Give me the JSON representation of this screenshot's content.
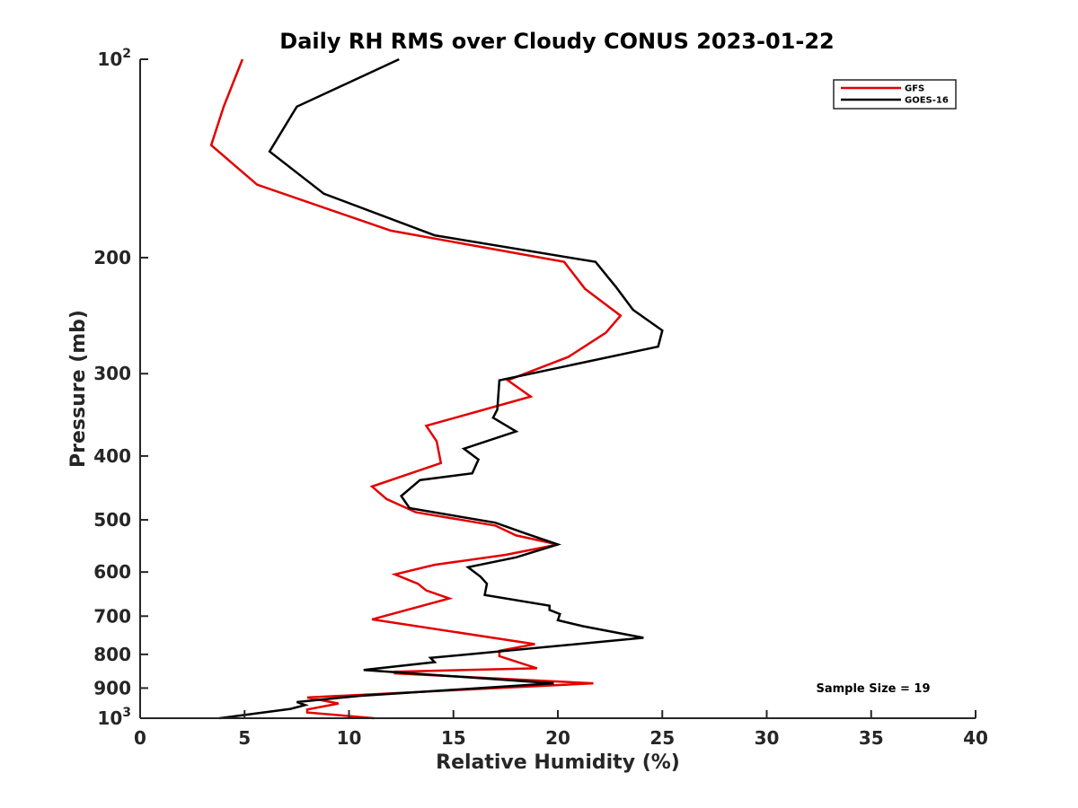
{
  "chart_data": {
    "type": "line",
    "title": "Daily RH RMS over Cloudy CONUS 2023-01-22",
    "xlabel": "Relative Humidity (%)",
    "ylabel": "Pressure (mb)",
    "xlim": [
      0,
      40
    ],
    "ylim": [
      100,
      1000
    ],
    "y_scale": "log",
    "y_reversed": true,
    "xticks": [
      0,
      5,
      10,
      15,
      20,
      25,
      30,
      35,
      40
    ],
    "xtick_labels": [
      "0",
      "5",
      "10",
      "15",
      "20",
      "25",
      "30",
      "35",
      "40"
    ],
    "yticks": [
      {
        "value": 100,
        "base": "10",
        "exp": "2"
      },
      {
        "value": 200,
        "label": "200"
      },
      {
        "value": 300,
        "label": "300"
      },
      {
        "value": 400,
        "label": "400"
      },
      {
        "value": 500,
        "label": "500"
      },
      {
        "value": 600,
        "label": "600"
      },
      {
        "value": 700,
        "label": "700"
      },
      {
        "value": 800,
        "label": "800"
      },
      {
        "value": 900,
        "label": "900"
      },
      {
        "value": 1000,
        "base": "10",
        "exp": "3"
      }
    ],
    "grid": false,
    "legend": "top-right",
    "annotation": "Sample Size = 19",
    "series": [
      {
        "name": "GFS",
        "color": "#e30000",
        "points": [
          [
            4.9,
            100
          ],
          [
            4.0,
            118
          ],
          [
            3.4,
            135
          ],
          [
            5.6,
            155
          ],
          [
            12.0,
            182
          ],
          [
            20.3,
            203
          ],
          [
            21.3,
            223
          ],
          [
            23.0,
            245
          ],
          [
            22.3,
            260
          ],
          [
            20.5,
            283
          ],
          [
            17.6,
            307
          ],
          [
            18.7,
            325
          ],
          [
            13.7,
            360
          ],
          [
            14.2,
            380
          ],
          [
            14.4,
            410
          ],
          [
            11.1,
            445
          ],
          [
            11.8,
            465
          ],
          [
            13.2,
            487
          ],
          [
            17.0,
            510
          ],
          [
            18.0,
            528
          ],
          [
            20.0,
            545
          ],
          [
            17.5,
            565
          ],
          [
            14.1,
            585
          ],
          [
            12.2,
            605
          ],
          [
            13.3,
            625
          ],
          [
            13.7,
            640
          ],
          [
            14.8,
            658
          ],
          [
            11.1,
            708
          ],
          [
            18.9,
            772
          ],
          [
            17.2,
            790
          ],
          [
            17.2,
            805
          ],
          [
            19.0,
            840
          ],
          [
            12.2,
            850
          ],
          [
            12.2,
            855
          ],
          [
            21.7,
            885
          ],
          [
            8.0,
            930
          ],
          [
            9.5,
            950
          ],
          [
            8.0,
            970
          ],
          [
            8.0,
            980
          ],
          [
            11.2,
            1000
          ]
        ]
      },
      {
        "name": "GOES-16",
        "color": "#000000",
        "points": [
          [
            12.4,
            100
          ],
          [
            7.5,
            118
          ],
          [
            6.2,
            138
          ],
          [
            8.8,
            160
          ],
          [
            14.1,
            185
          ],
          [
            21.8,
            203
          ],
          [
            22.8,
            222
          ],
          [
            23.6,
            240
          ],
          [
            25.0,
            258
          ],
          [
            24.8,
            273
          ],
          [
            17.2,
            307
          ],
          [
            17.1,
            340
          ],
          [
            16.9,
            350
          ],
          [
            18.0,
            367
          ],
          [
            15.5,
            390
          ],
          [
            16.2,
            405
          ],
          [
            15.9,
            425
          ],
          [
            13.4,
            435
          ],
          [
            12.5,
            460
          ],
          [
            12.9,
            480
          ],
          [
            17.0,
            505
          ],
          [
            18.5,
            525
          ],
          [
            20.0,
            545
          ],
          [
            18.0,
            570
          ],
          [
            15.7,
            590
          ],
          [
            16.3,
            610
          ],
          [
            16.6,
            625
          ],
          [
            16.5,
            650
          ],
          [
            19.6,
            675
          ],
          [
            19.6,
            685
          ],
          [
            20.1,
            695
          ],
          [
            20.0,
            710
          ],
          [
            21.2,
            725
          ],
          [
            24.1,
            755
          ],
          [
            13.9,
            810
          ],
          [
            14.1,
            822
          ],
          [
            10.7,
            845
          ],
          [
            19.8,
            885
          ],
          [
            10.5,
            925
          ],
          [
            7.5,
            945
          ],
          [
            7.9,
            955
          ],
          [
            7.2,
            968
          ],
          [
            3.8,
            1000
          ]
        ]
      }
    ]
  }
}
